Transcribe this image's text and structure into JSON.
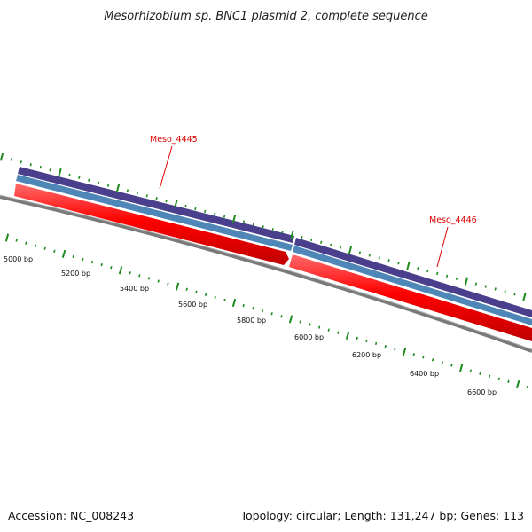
{
  "title": "Mesorhizobium sp. BNC1 plasmid 2, complete sequence",
  "footer": {
    "accession": "Accession: NC_008243",
    "summary": "Topology: circular; Length: 131,247 bp; Genes: 113"
  },
  "ruler": {
    "labels": [
      "5000 bp",
      "5200 bp",
      "5400 bp",
      "5600 bp",
      "5800 bp",
      "6000 bp",
      "6200 bp",
      "6400 bp",
      "6600 bp"
    ],
    "tick_color": "#1e8a1e"
  },
  "genes": [
    {
      "name": "Meso_4445",
      "color": "#ff0000",
      "label_color": "#dd0000"
    },
    {
      "name": "Meso_4446",
      "color": "#ff0000",
      "label_color": "#dd0000"
    }
  ],
  "tracks": {
    "outer_color": "#4a3f8c",
    "middle_color": "#4f86b8",
    "backbone_color": "#7a7a7a"
  }
}
